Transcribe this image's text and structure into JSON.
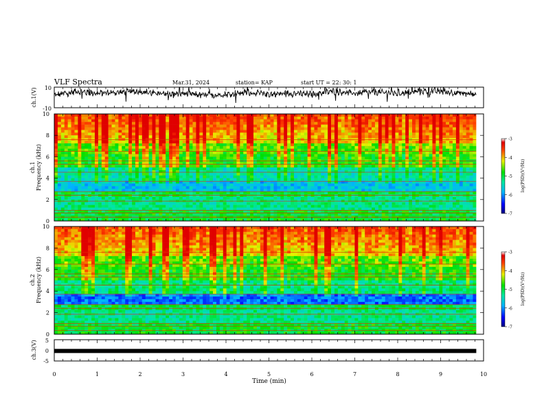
{
  "header": {
    "title": "VLF Spectra",
    "date": "Mar.31, 2024",
    "station": "station= KAP",
    "start": "start  UT  =   22: 30: 1"
  },
  "chart_data": [
    {
      "type": "line",
      "panel": "ch1-waveform",
      "ylabel": "ch.1(V)",
      "ylim": [
        -10,
        10
      ],
      "yticks": [
        "10",
        "-10"
      ],
      "x_range_min": [
        0,
        9.83
      ],
      "baseline_trend": [
        {
          "t": 0.0,
          "v": 2
        },
        {
          "t": 0.5,
          "v": 6
        },
        {
          "t": 1.0,
          "v": 4
        },
        {
          "t": 1.5,
          "v": 5
        },
        {
          "t": 2.0,
          "v": 6
        },
        {
          "t": 2.5,
          "v": 3
        },
        {
          "t": 3.0,
          "v": 4
        },
        {
          "t": 3.5,
          "v": 2
        },
        {
          "t": 4.0,
          "v": 3
        },
        {
          "t": 4.5,
          "v": 5
        },
        {
          "t": 5.0,
          "v": 3
        },
        {
          "t": 5.5,
          "v": 4
        },
        {
          "t": 6.0,
          "v": 3
        },
        {
          "t": 6.5,
          "v": 6
        },
        {
          "t": 7.0,
          "v": 4
        },
        {
          "t": 7.5,
          "v": 5
        },
        {
          "t": 8.0,
          "v": 4
        },
        {
          "t": 8.5,
          "v": 6
        },
        {
          "t": 9.0,
          "v": 6
        },
        {
          "t": 9.5,
          "v": 4
        },
        {
          "t": 9.83,
          "v": 3
        }
      ]
    },
    {
      "type": "heatmap",
      "panel": "ch1-spectrogram",
      "ylabel": "ch.1\nFrequency (kHz)",
      "ylim": [
        0,
        10
      ],
      "yticks": [
        "0",
        "2",
        "4",
        "6",
        "8",
        "10"
      ],
      "colorbar": {
        "label": "log(PSD)(V²/Hz)",
        "ticks": [
          "-3",
          "-4",
          "-5",
          "-6",
          "-7"
        ],
        "range": [
          -7,
          -3
        ]
      },
      "x_range_min": [
        0,
        9.83
      ]
    },
    {
      "type": "heatmap",
      "panel": "ch2-spectrogram",
      "ylabel": "ch.2\nFrequency (kHz)",
      "ylim": [
        0,
        10
      ],
      "yticks": [
        "0",
        "2",
        "4",
        "6",
        "8",
        "10"
      ],
      "colorbar": {
        "label": "log(PSD)(V²/Hz)",
        "ticks": [
          "-3",
          "-4",
          "-5",
          "-6",
          "-7"
        ],
        "range": [
          -7,
          -3
        ]
      },
      "x_range_min": [
        0,
        9.83
      ]
    },
    {
      "type": "line",
      "panel": "ch3-waveform",
      "ylabel": "ch.3(V)",
      "ylim": [
        -5,
        5
      ],
      "yticks": [
        "5",
        "0",
        "-5"
      ],
      "x_range_min": [
        0,
        9.83
      ],
      "value_constant": -0.3
    }
  ],
  "x_axis": {
    "label": "Time (min)",
    "ticks": [
      "0",
      "1",
      "2",
      "3",
      "4",
      "5",
      "6",
      "7",
      "8",
      "9",
      "10"
    ],
    "range": [
      0,
      10
    ]
  },
  "colors": {
    "frame": "#000000",
    "background": "#ffffff"
  }
}
